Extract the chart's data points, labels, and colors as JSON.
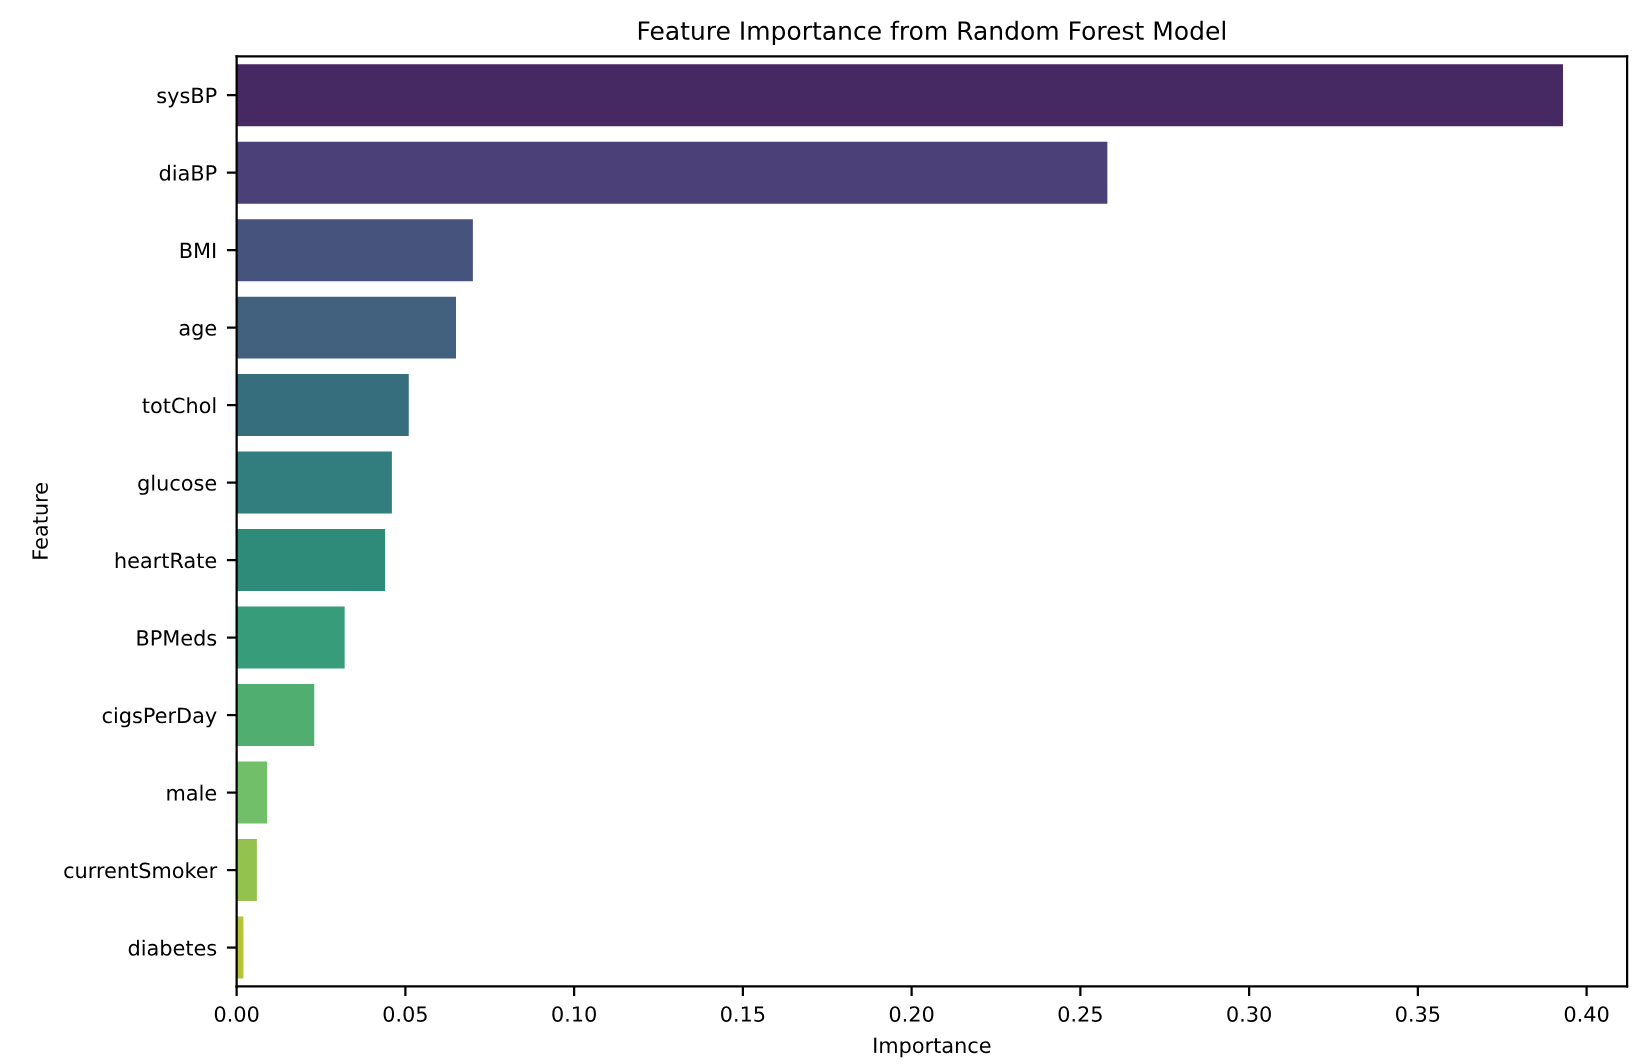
{
  "chart_data": {
    "type": "bar",
    "orientation": "horizontal",
    "title": "Feature Importance from Random Forest Model",
    "xlabel": "Importance",
    "ylabel": "Feature",
    "categories": [
      "sysBP",
      "diaBP",
      "BMI",
      "age",
      "totChol",
      "glucose",
      "heartRate",
      "BPMeds",
      "cigsPerDay",
      "male",
      "currentSmoker",
      "diabetes"
    ],
    "values": [
      0.393,
      0.258,
      0.07,
      0.065,
      0.051,
      0.046,
      0.044,
      0.032,
      0.023,
      0.009,
      0.006,
      0.002
    ],
    "colors": [
      "#462862",
      "#4b4077",
      "#46537c",
      "#41617f",
      "#366e7d",
      "#327d7e",
      "#2e8b7a",
      "#369c79",
      "#50ae70",
      "#72bf6a",
      "#94c24f",
      "#b5c436"
    ],
    "xlim": [
      0,
      0.412
    ],
    "xticks": [
      {
        "value": 0,
        "label": "0.00"
      },
      {
        "value": 0.05,
        "label": "0.05"
      },
      {
        "value": 0.1,
        "label": "0.10"
      },
      {
        "value": 0.15,
        "label": "0.15"
      },
      {
        "value": 0.2,
        "label": "0.20"
      },
      {
        "value": 0.25,
        "label": "0.25"
      },
      {
        "value": 0.3,
        "label": "0.30"
      },
      {
        "value": 0.35,
        "label": "0.35"
      },
      {
        "value": 0.4,
        "label": "0.40"
      }
    ],
    "grid": false,
    "legend": false
  }
}
